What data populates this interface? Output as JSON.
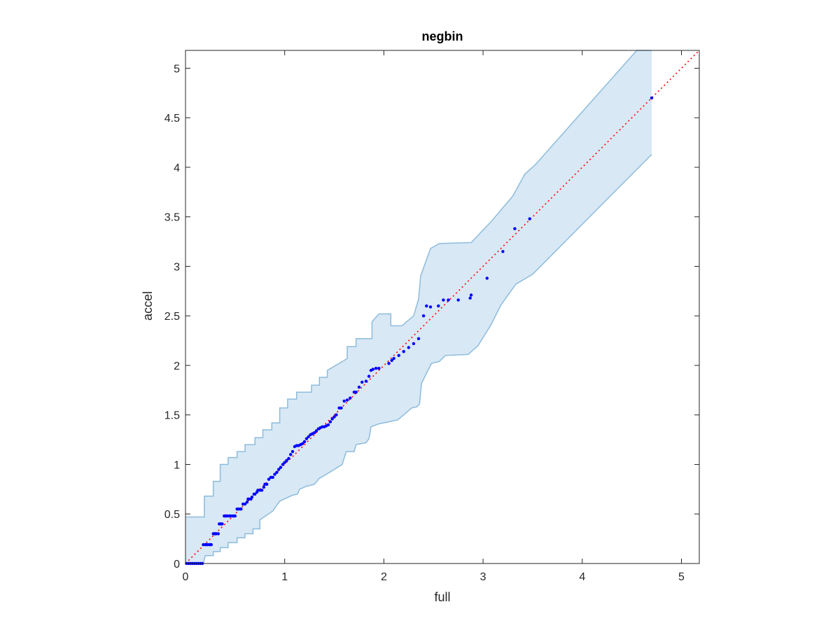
{
  "chart_data": {
    "type": "scatter",
    "title": "negbin",
    "xlabel": "full",
    "ylabel": "accel",
    "xlim": [
      0,
      5.18
    ],
    "ylim": [
      0,
      5.18
    ],
    "xticks": [
      0,
      1,
      2,
      3,
      4,
      5
    ],
    "yticks": [
      0,
      0.5,
      1,
      1.5,
      2,
      2.5,
      3,
      3.5,
      4,
      4.5,
      5
    ],
    "xtick_labels": [
      "0",
      "1",
      "2",
      "3",
      "4",
      "5"
    ],
    "ytick_labels": [
      "0",
      "0.5",
      "1",
      "1.5",
      "2",
      "2.5",
      "3",
      "3.5",
      "4",
      "4.5",
      "5"
    ],
    "grid": false,
    "reference_line": {
      "style": "dotted",
      "color": "#ff0000",
      "from": [
        0,
        0
      ],
      "to": [
        5.18,
        5.18
      ]
    },
    "band": {
      "color_fill": "#d8e8f4",
      "color_edge": "#8dbcdc",
      "upper": [
        [
          0,
          0.47
        ],
        [
          0.19,
          0.47
        ],
        [
          0.19,
          0.68
        ],
        [
          0.28,
          0.68
        ],
        [
          0.28,
          0.83
        ],
        [
          0.35,
          0.83
        ],
        [
          0.35,
          1.0
        ],
        [
          0.43,
          1.0
        ],
        [
          0.43,
          1.07
        ],
        [
          0.52,
          1.07
        ],
        [
          0.52,
          1.13
        ],
        [
          0.6,
          1.13
        ],
        [
          0.6,
          1.2
        ],
        [
          0.7,
          1.2
        ],
        [
          0.7,
          1.27
        ],
        [
          0.78,
          1.27
        ],
        [
          0.78,
          1.35
        ],
        [
          0.87,
          1.35
        ],
        [
          0.87,
          1.42
        ],
        [
          0.95,
          1.42
        ],
        [
          0.95,
          1.57
        ],
        [
          1.03,
          1.57
        ],
        [
          1.03,
          1.66
        ],
        [
          1.12,
          1.66
        ],
        [
          1.12,
          1.73
        ],
        [
          1.27,
          1.73
        ],
        [
          1.27,
          1.8
        ],
        [
          1.35,
          1.8
        ],
        [
          1.35,
          1.88
        ],
        [
          1.43,
          1.88
        ],
        [
          1.43,
          1.95
        ],
        [
          1.6,
          2.05
        ],
        [
          1.63,
          2.07
        ],
        [
          1.63,
          2.19
        ],
        [
          1.72,
          2.19
        ],
        [
          1.72,
          2.27
        ],
        [
          1.88,
          2.27
        ],
        [
          1.88,
          2.44
        ],
        [
          1.95,
          2.52
        ],
        [
          2.07,
          2.52
        ],
        [
          2.07,
          2.4
        ],
        [
          2.18,
          2.4
        ],
        [
          2.3,
          2.5
        ],
        [
          2.35,
          2.67
        ],
        [
          2.37,
          2.9
        ],
        [
          2.47,
          3.18
        ],
        [
          2.56,
          3.23
        ],
        [
          2.88,
          3.24
        ],
        [
          3.08,
          3.45
        ],
        [
          3.3,
          3.71
        ],
        [
          3.42,
          3.93
        ],
        [
          3.53,
          4.03
        ],
        [
          4.55,
          5.18
        ],
        [
          4.7,
          5.18
        ]
      ],
      "lower": [
        [
          0,
          0
        ],
        [
          0.18,
          0
        ],
        [
          0.2,
          0.08
        ],
        [
          0.28,
          0.08
        ],
        [
          0.28,
          0.12
        ],
        [
          0.35,
          0.12
        ],
        [
          0.35,
          0.16
        ],
        [
          0.43,
          0.16
        ],
        [
          0.43,
          0.21
        ],
        [
          0.52,
          0.21
        ],
        [
          0.52,
          0.26
        ],
        [
          0.6,
          0.26
        ],
        [
          0.6,
          0.3
        ],
        [
          0.68,
          0.3
        ],
        [
          0.68,
          0.35
        ],
        [
          0.75,
          0.35
        ],
        [
          0.75,
          0.44
        ],
        [
          0.88,
          0.53
        ],
        [
          0.95,
          0.63
        ],
        [
          1.08,
          0.69
        ],
        [
          1.13,
          0.7
        ],
        [
          1.15,
          0.75
        ],
        [
          1.22,
          0.78
        ],
        [
          1.3,
          0.8
        ],
        [
          1.35,
          0.86
        ],
        [
          1.42,
          0.9
        ],
        [
          1.5,
          0.95
        ],
        [
          1.58,
          1.0
        ],
        [
          1.62,
          1.13
        ],
        [
          1.7,
          1.13
        ],
        [
          1.72,
          1.2
        ],
        [
          1.82,
          1.22
        ],
        [
          1.85,
          1.26
        ],
        [
          1.87,
          1.38
        ],
        [
          1.95,
          1.41
        ],
        [
          2.05,
          1.43
        ],
        [
          2.14,
          1.45
        ],
        [
          2.2,
          1.5
        ],
        [
          2.28,
          1.57
        ],
        [
          2.33,
          1.58
        ],
        [
          2.36,
          1.61
        ],
        [
          2.37,
          1.72
        ],
        [
          2.38,
          1.82
        ],
        [
          2.48,
          2.02
        ],
        [
          2.56,
          2.04
        ],
        [
          2.62,
          2.1
        ],
        [
          2.85,
          2.11
        ],
        [
          2.95,
          2.2
        ],
        [
          3.08,
          2.41
        ],
        [
          3.18,
          2.61
        ],
        [
          3.33,
          2.82
        ],
        [
          3.5,
          2.92
        ],
        [
          4.7,
          4.13
        ]
      ]
    },
    "series": [
      {
        "color": "#0000ff",
        "x": [
          0.01,
          0.03,
          0.05,
          0.07,
          0.09,
          0.11,
          0.13,
          0.15,
          0.17,
          0.18,
          0.2,
          0.21,
          0.22,
          0.24,
          0.25,
          0.26,
          0.28,
          0.29,
          0.3,
          0.31,
          0.33,
          0.34,
          0.35,
          0.36,
          0.37,
          0.39,
          0.4,
          0.41,
          0.42,
          0.44,
          0.45,
          0.46,
          0.48,
          0.49,
          0.5,
          0.52,
          0.53,
          0.55,
          0.56,
          0.58,
          0.6,
          0.62,
          0.63,
          0.64,
          0.66,
          0.67,
          0.69,
          0.7,
          0.72,
          0.73,
          0.75,
          0.77,
          0.79,
          0.8,
          0.82,
          0.84,
          0.86,
          0.88,
          0.9,
          0.92,
          0.94,
          0.96,
          0.98,
          1.0,
          1.02,
          1.04,
          1.06,
          1.08,
          1.1,
          1.12,
          1.14,
          1.16,
          1.18,
          1.2,
          1.22,
          1.24,
          1.26,
          1.28,
          1.3,
          1.32,
          1.34,
          1.36,
          1.38,
          1.4,
          1.42,
          1.44,
          1.46,
          1.48,
          1.5,
          1.52,
          1.55,
          1.57,
          1.6,
          1.63,
          1.66,
          1.7,
          1.72,
          1.75,
          1.78,
          1.82,
          1.85,
          1.87,
          1.89,
          1.92,
          1.95,
          2.05,
          2.08,
          2.1,
          2.15,
          2.2,
          2.25,
          2.3,
          2.35,
          2.4,
          2.43,
          2.47,
          2.55,
          2.6,
          2.65,
          2.75,
          2.87,
          2.88,
          3.04,
          3.2,
          3.32,
          3.47,
          4.7
        ],
        "y": [
          0,
          0,
          0,
          0,
          0,
          0,
          0,
          0,
          0,
          0.19,
          0.19,
          0.19,
          0.19,
          0.19,
          0.19,
          0.19,
          0.3,
          0.3,
          0.3,
          0.3,
          0.3,
          0.4,
          0.4,
          0.4,
          0.4,
          0.48,
          0.48,
          0.48,
          0.48,
          0.48,
          0.48,
          0.48,
          0.48,
          0.48,
          0.48,
          0.55,
          0.55,
          0.55,
          0.55,
          0.6,
          0.6,
          0.62,
          0.65,
          0.65,
          0.65,
          0.67,
          0.7,
          0.7,
          0.72,
          0.74,
          0.74,
          0.74,
          0.77,
          0.8,
          0.8,
          0.85,
          0.87,
          0.87,
          0.9,
          0.92,
          0.95,
          0.97,
          1.0,
          1.02,
          1.04,
          1.06,
          1.1,
          1.13,
          1.18,
          1.19,
          1.19,
          1.2,
          1.21,
          1.23,
          1.26,
          1.28,
          1.3,
          1.31,
          1.32,
          1.34,
          1.36,
          1.37,
          1.38,
          1.38,
          1.39,
          1.4,
          1.43,
          1.46,
          1.48,
          1.5,
          1.57,
          1.57,
          1.64,
          1.65,
          1.67,
          1.73,
          1.73,
          1.78,
          1.83,
          1.84,
          1.89,
          1.95,
          1.96,
          1.97,
          1.97,
          2.02,
          2.05,
          2.07,
          2.1,
          2.14,
          2.18,
          2.22,
          2.27,
          2.5,
          2.6,
          2.59,
          2.6,
          2.66,
          2.66,
          2.66,
          2.68,
          2.71,
          2.88,
          3.15,
          3.38,
          3.48,
          4.7
        ]
      }
    ]
  }
}
